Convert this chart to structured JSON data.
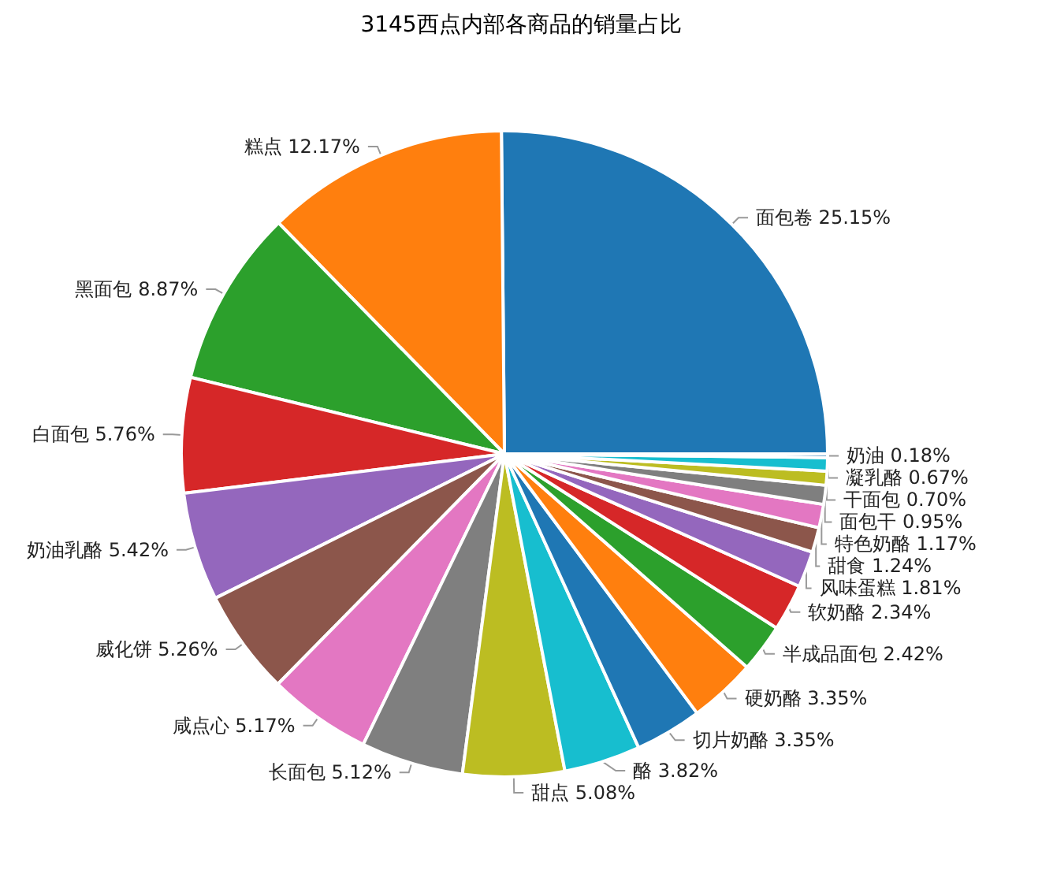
{
  "chart_data": {
    "type": "pie",
    "title": "3145西点内部各商品的销量占比",
    "categories": [
      "面包卷",
      "糕点",
      "黑面包",
      "白面包",
      "奶油乳酪",
      "威化饼",
      "咸点心",
      "长面包",
      "甜点",
      "酪",
      "切片奶酪",
      "硬奶酪",
      "半成品面包",
      "软奶酪",
      "风味蛋糕",
      "甜食",
      "特色奶酪",
      "面包干",
      "干面包",
      "凝乳酪",
      "奶油"
    ],
    "values": [
      25.15,
      12.17,
      8.87,
      5.76,
      5.42,
      5.26,
      5.17,
      5.12,
      5.08,
      3.82,
      3.35,
      3.35,
      2.42,
      2.34,
      1.81,
      1.24,
      1.17,
      0.95,
      0.7,
      0.67,
      0.18
    ],
    "value_labels": [
      "25.15%",
      "12.17%",
      "8.87%",
      "5.76%",
      "5.42%",
      "5.26%",
      "5.17%",
      "5.12%",
      "5.08%",
      "3.82%",
      "3.35%",
      "3.35%",
      "2.42%",
      "2.34%",
      "1.81%",
      "1.24%",
      "1.17%",
      "0.95%",
      "0.70%",
      "0.67%",
      "0.18%"
    ],
    "colors": [
      "#1f77b4",
      "#ff7f0e",
      "#2ca02c",
      "#d62728",
      "#9467bd",
      "#8c564b",
      "#e377c2",
      "#7f7f7f",
      "#bcbd22",
      "#17becf",
      "#1f77b4",
      "#ff7f0e",
      "#2ca02c",
      "#d62728",
      "#9467bd",
      "#8c564b",
      "#e377c2",
      "#7f7f7f",
      "#bcbd22",
      "#17becf",
      "#1f77b4"
    ]
  }
}
